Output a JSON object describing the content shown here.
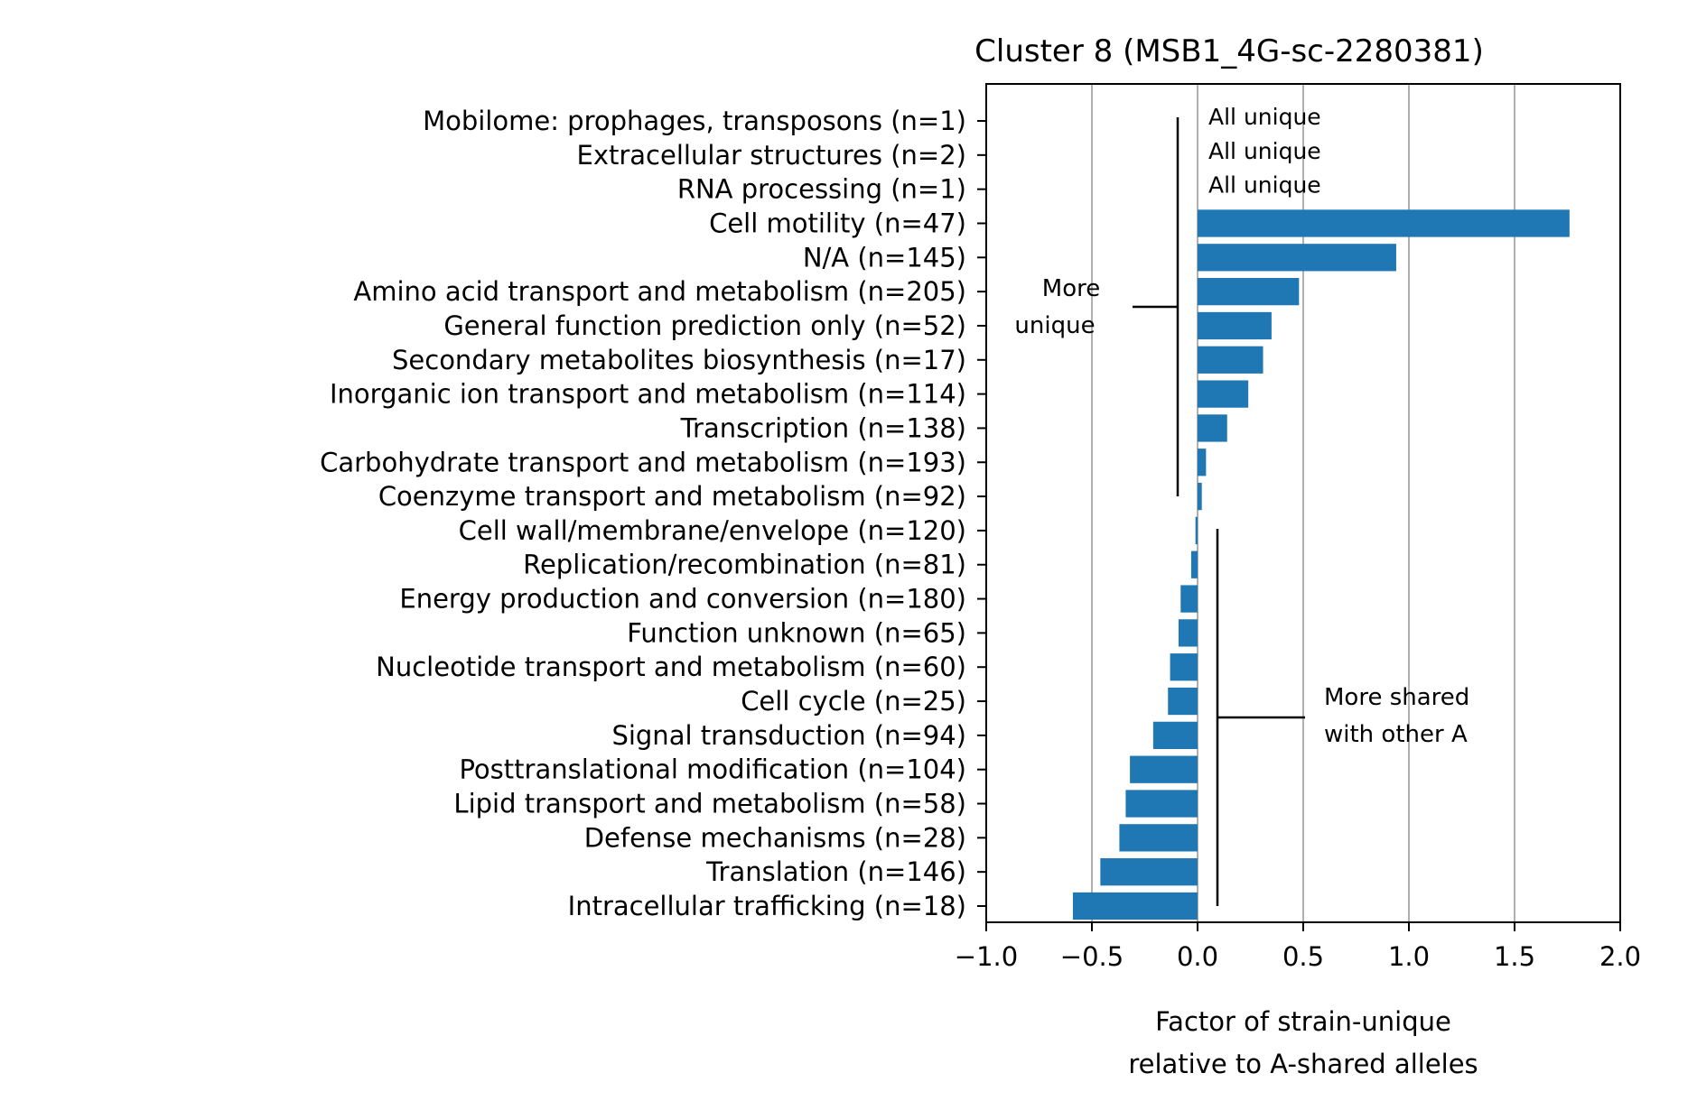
{
  "chart_data": {
    "type": "bar",
    "orientation": "horizontal",
    "title": "Cluster 8 (MSB1_4G-sc-2280381)",
    "xlabel_lines": [
      "Factor of strain-unique",
      "relative to A-shared alleles"
    ],
    "xlim": [
      -1.0,
      2.0
    ],
    "xticks": [
      -1.0,
      -0.5,
      0.0,
      0.5,
      1.0,
      1.5,
      2.0
    ],
    "xtick_labels": [
      "−1.0",
      "−0.5",
      "0.0",
      "0.5",
      "1.0",
      "1.5",
      "2.0"
    ],
    "grid": "vertical",
    "bar_color": "#1f77b4",
    "categories": [
      "Mobilome: prophages, transposons (n=1)",
      "Extracellular structures (n=2)",
      "RNA processing (n=1)",
      "Cell motility (n=47)",
      "N/A (n=145)",
      "Amino acid transport and metabolism (n=205)",
      "General function prediction only (n=52)",
      "Secondary metabolites biosynthesis (n=17)",
      "Inorganic ion transport and metabolism (n=114)",
      "Transcription (n=138)",
      "Carbohydrate transport and metabolism (n=193)",
      "Coenzyme transport and metabolism (n=92)",
      "Cell wall/membrane/envelope (n=120)",
      "Replication/recombination (n=81)",
      "Energy production and conversion (n=180)",
      "Function unknown (n=65)",
      "Nucleotide transport and metabolism (n=60)",
      "Cell cycle (n=25)",
      "Signal transduction (n=94)",
      "Posttranslational modification (n=104)",
      "Lipid transport and metabolism (n=58)",
      "Defense mechanisms (n=28)",
      "Translation (n=146)",
      "Intracellular trafficking (n=18)"
    ],
    "values": [
      null,
      null,
      null,
      1.76,
      0.94,
      0.48,
      0.35,
      0.31,
      0.24,
      0.14,
      0.04,
      0.02,
      -0.01,
      -0.03,
      -0.08,
      -0.09,
      -0.13,
      -0.14,
      -0.21,
      -0.32,
      -0.34,
      -0.37,
      -0.46,
      -0.59
    ],
    "value_notes": [
      "All unique",
      "All unique",
      "All unique",
      null,
      null,
      null,
      null,
      null,
      null,
      null,
      null,
      null,
      null,
      null,
      null,
      null,
      null,
      null,
      null,
      null,
      null,
      null,
      null,
      null
    ],
    "annotations": {
      "more_unique": [
        "More",
        "unique"
      ],
      "more_shared": [
        "More shared",
        "with other A"
      ]
    }
  }
}
